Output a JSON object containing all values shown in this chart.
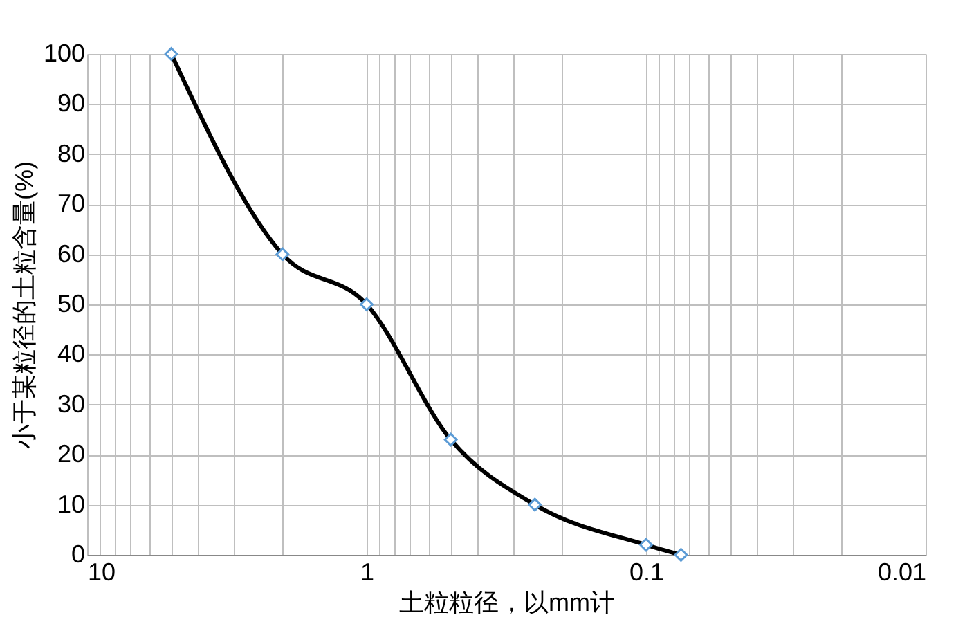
{
  "chart_data": {
    "type": "line",
    "xlabel": "土粒粒径，以mm计",
    "ylabel": "小于某粒径的土粒含量(%)",
    "x": [
      5,
      2,
      1,
      0.5,
      0.25,
      0.1,
      0.075
    ],
    "series": [
      {
        "color": "#000000",
        "values": [
          100,
          60,
          50,
          23,
          10,
          2,
          0
        ]
      }
    ],
    "log": "x",
    "xlim": [
      10,
      0.01
    ],
    "xticks": [
      10,
      {
        "value": 9,
        "label": null
      },
      {
        "value": 8,
        "label": null
      },
      {
        "value": 7,
        "label": null
      },
      {
        "value": 6,
        "label": null
      },
      {
        "value": 5,
        "label": null
      },
      {
        "value": 4,
        "label": null
      },
      {
        "value": 3,
        "label": null
      },
      {
        "value": 2,
        "label": null
      },
      1,
      {
        "value": 0.9,
        "label": null
      },
      {
        "value": 0.8,
        "label": null
      },
      {
        "value": 0.7,
        "label": null
      },
      {
        "value": 0.6,
        "label": null
      },
      {
        "value": 0.5,
        "label": null
      },
      {
        "value": 0.4,
        "label": null
      },
      {
        "value": 0.3,
        "label": null
      },
      {
        "value": 0.2,
        "label": null
      },
      0.1,
      {
        "value": 0.09,
        "label": null
      },
      {
        "value": 0.08,
        "label": null
      },
      {
        "value": 0.07,
        "label": null
      },
      {
        "value": 0.06,
        "label": null
      },
      {
        "value": 0.05,
        "label": null
      },
      {
        "value": 0.04,
        "label": null
      },
      {
        "value": 0.03,
        "label": null
      },
      {
        "value": 0.02,
        "label": null
      },
      0.01
    ],
    "ylim": [
      0,
      100
    ],
    "yticks": [
      0,
      10,
      20,
      30,
      40,
      50,
      60,
      70,
      80,
      90,
      100
    ],
    "grid": true,
    "marker": "diamond",
    "line_style": "solid"
  }
}
